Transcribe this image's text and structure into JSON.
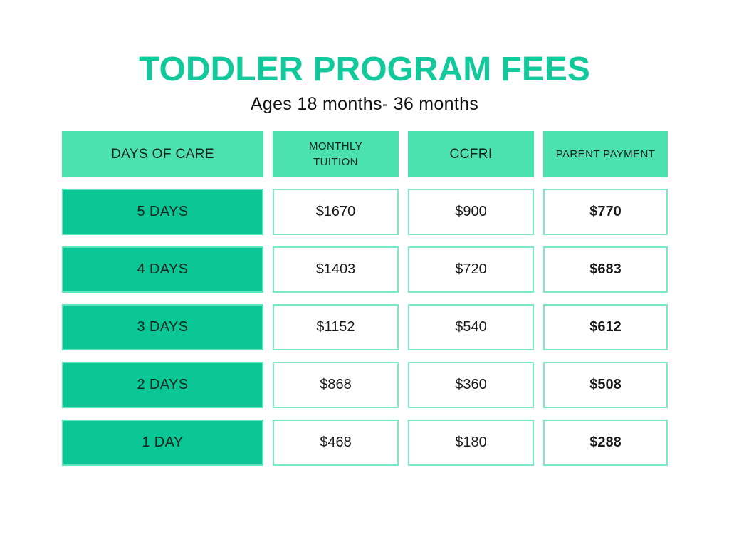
{
  "page": {
    "title": "TODDLER PROGRAM FEES",
    "subtitle": "Ages 18 months- 36 months"
  },
  "chart_data": {
    "type": "table",
    "title": "TODDLER PROGRAM FEES",
    "subtitle": "Ages 18 months- 36 months",
    "columns": [
      "DAYS OF CARE",
      "MONTHLY TUITION",
      "CCFRI",
      "PARENT PAYMENT"
    ],
    "rows": [
      [
        "5 DAYS",
        "$1670",
        "$900",
        "$770"
      ],
      [
        "4 DAYS",
        "$1403",
        "$720",
        "$683"
      ],
      [
        "3 DAYS",
        "$1152",
        "$540",
        "$612"
      ],
      [
        "2 DAYS",
        "$868",
        "$360",
        "$508"
      ],
      [
        "1 DAY",
        "$468",
        "$180",
        "$288"
      ]
    ],
    "layout_hints": {
      "first_column_style": "solid dark-green cells",
      "value_column_style": "white cells with mint border",
      "last_column_bold": true,
      "header_style": "light mint cells"
    }
  },
  "colors": {
    "title_green": "#12C99B",
    "header_mint": "#4CE2B0",
    "row_green": "#0BC795",
    "value_cell_border": "#7BE9C8",
    "days_cell_border": "#5FE5BB",
    "text_dark": "#111111",
    "background": "#FFFFFF"
  }
}
